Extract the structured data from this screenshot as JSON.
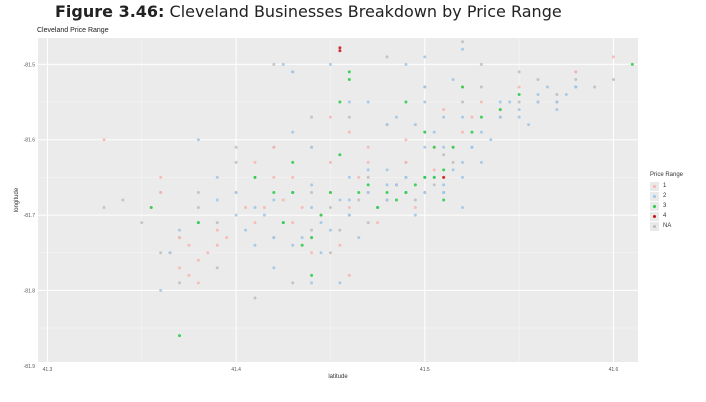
{
  "figure": {
    "number": "Figure 3.46:",
    "caption": "Cleveland Businesses Breakdown by Price Range"
  },
  "chart_data": {
    "type": "scatter",
    "title": "Cleveland Price Range",
    "xlabel": "latitude",
    "ylabel": "longitude",
    "xlim": [
      41.295,
      41.613
    ],
    "ylim": [
      -81.945,
      -81.515
    ],
    "x_ticks": [
      {
        "value": 41.3,
        "label": "41.3"
      },
      {
        "value": 41.4,
        "label": "41.4"
      },
      {
        "value": 41.5,
        "label": "41.5"
      },
      {
        "value": 41.6,
        "label": "41.6"
      }
    ],
    "y_ticks": [
      {
        "value": -81.55,
        "label": "-81.5"
      },
      {
        "value": -81.65,
        "label": "-81.6"
      },
      {
        "value": -81.75,
        "label": "-81.7"
      },
      {
        "value": -81.85,
        "label": "-81.8"
      },
      {
        "value": -81.95,
        "label": "-81.9"
      }
    ],
    "grid": true,
    "legend_position": "right",
    "legend": {
      "title": "Price Range",
      "entries": [
        {
          "label": "1",
          "color": "#f8b4b0"
        },
        {
          "label": "2",
          "color": "#9cc5e8"
        },
        {
          "label": "3",
          "color": "#22cc44"
        },
        {
          "label": "4",
          "color": "#cc1111"
        },
        {
          "label": "NA",
          "color": "#bdbdbd"
        }
      ]
    },
    "series": [
      {
        "name": "1",
        "x": [
          41.33,
          41.355,
          41.36,
          41.365,
          41.37,
          41.375,
          41.38,
          41.385,
          41.39,
          41.395,
          41.4,
          41.405,
          41.41,
          41.415,
          41.42,
          41.425,
          41.43,
          41.435,
          41.44,
          41.445,
          41.45,
          41.455,
          41.46,
          41.465,
          41.47,
          41.475,
          41.48,
          41.485,
          41.49,
          41.495,
          41.5,
          41.505,
          41.51,
          41.515,
          41.52,
          41.525,
          41.53,
          41.54,
          41.55,
          41.56,
          41.58,
          41.6,
          41.39,
          41.38,
          41.375,
          41.44,
          41.45,
          41.46,
          41.47,
          41.48,
          41.49,
          41.43,
          41.42,
          41.41,
          41.5,
          41.52,
          41.51,
          41.505,
          41.46,
          41.44,
          41.37,
          41.36,
          41.45,
          41.47,
          41.49
        ],
        "y": [
          -81.65,
          -81.74,
          -81.72,
          -81.8,
          -81.82,
          -81.79,
          -81.81,
          -81.8,
          -81.77,
          -81.78,
          -81.72,
          -81.74,
          -81.76,
          -81.74,
          -81.7,
          -81.73,
          -81.76,
          -81.74,
          -81.78,
          -81.75,
          -81.72,
          -81.79,
          -81.74,
          -81.7,
          -81.72,
          -81.76,
          -81.73,
          -81.71,
          -81.68,
          -81.74,
          -81.72,
          -81.69,
          -81.7,
          -81.66,
          -81.64,
          -81.62,
          -81.6,
          -81.61,
          -81.58,
          -81.6,
          -81.56,
          -81.54,
          -81.79,
          -81.84,
          -81.83,
          -81.66,
          -81.68,
          -81.64,
          -81.66,
          -81.63,
          -81.65,
          -81.7,
          -81.66,
          -81.68,
          -81.64,
          -81.58,
          -81.61,
          -81.66,
          -81.83,
          -81.8,
          -81.78,
          -81.7,
          -81.62,
          -81.68,
          -81.72
        ]
      },
      {
        "name": "2",
        "x": [
          41.36,
          41.37,
          41.38,
          41.39,
          41.4,
          41.405,
          41.41,
          41.415,
          41.42,
          41.425,
          41.43,
          41.435,
          41.44,
          41.445,
          41.45,
          41.455,
          41.46,
          41.465,
          41.47,
          41.475,
          41.48,
          41.485,
          41.49,
          41.495,
          41.5,
          41.505,
          41.51,
          41.515,
          41.52,
          41.525,
          41.53,
          41.535,
          41.54,
          41.545,
          41.55,
          41.555,
          41.56,
          41.565,
          41.57,
          41.575,
          41.58,
          41.425,
          41.43,
          41.44,
          41.45,
          41.46,
          41.48,
          41.49,
          41.5,
          41.505,
          41.51,
          41.52,
          41.515,
          41.52,
          41.5,
          41.495,
          41.47,
          41.42,
          41.41,
          41.39,
          41.38,
          41.365,
          41.43,
          41.44,
          41.455,
          41.47,
          41.485,
          41.5,
          41.51,
          41.52,
          41.525,
          41.54,
          41.55,
          41.56,
          41.57,
          41.58,
          41.49,
          41.48,
          41.46,
          41.445,
          41.43,
          41.42,
          41.4,
          41.44,
          41.46,
          41.48,
          41.5,
          41.51,
          41.52,
          41.53,
          41.5,
          41.51
        ],
        "y": [
          -81.85,
          -81.77,
          -81.76,
          -81.73,
          -81.72,
          -81.77,
          -81.74,
          -81.75,
          -81.73,
          -81.76,
          -81.72,
          -81.78,
          -81.74,
          -81.8,
          -81.77,
          -81.73,
          -81.75,
          -81.78,
          -81.72,
          -81.74,
          -81.73,
          -81.71,
          -81.72,
          -81.75,
          -81.72,
          -81.7,
          -81.71,
          -81.69,
          -81.68,
          -81.66,
          -81.64,
          -81.65,
          -81.62,
          -81.6,
          -81.61,
          -81.63,
          -81.6,
          -81.58,
          -81.6,
          -81.59,
          -81.58,
          -81.55,
          -81.56,
          -81.66,
          -81.55,
          -81.6,
          -81.63,
          -81.55,
          -81.58,
          -81.64,
          -81.66,
          -81.62,
          -81.57,
          -81.53,
          -81.54,
          -81.63,
          -81.69,
          -81.82,
          -81.79,
          -81.7,
          -81.65,
          -81.8,
          -81.64,
          -81.84,
          -81.84,
          -81.6,
          -81.62,
          -81.66,
          -81.72,
          -81.74,
          -81.66,
          -81.6,
          -81.62,
          -81.59,
          -81.61,
          -81.58,
          -81.7,
          -81.71,
          -81.7,
          -81.76,
          -81.79,
          -81.78,
          -81.75,
          -81.71,
          -81.73,
          -81.69,
          -81.7,
          -81.72,
          -81.7,
          -81.68,
          -81.6,
          -81.62
        ]
      },
      {
        "name": "3",
        "x": [
          41.37,
          41.355,
          41.38,
          41.41,
          41.42,
          41.425,
          41.43,
          41.435,
          41.44,
          41.445,
          41.45,
          41.455,
          41.46,
          41.465,
          41.47,
          41.475,
          41.48,
          41.485,
          41.49,
          41.495,
          41.5,
          41.505,
          41.51,
          41.515,
          41.52,
          41.525,
          41.53,
          41.54,
          41.55,
          41.61,
          41.46,
          41.455,
          41.49,
          41.5,
          41.44,
          41.43,
          41.51,
          41.505
        ],
        "y": [
          -81.91,
          -81.74,
          -81.76,
          -81.7,
          -81.72,
          -81.76,
          -81.72,
          -81.79,
          -81.83,
          -81.75,
          -81.72,
          -81.67,
          -81.56,
          -81.72,
          -81.71,
          -81.74,
          -81.72,
          -81.73,
          -81.72,
          -81.71,
          -81.7,
          -81.66,
          -81.69,
          -81.66,
          -81.58,
          -81.64,
          -81.62,
          -81.61,
          -81.59,
          -81.55,
          -81.57,
          -81.6,
          -81.6,
          -81.64,
          -81.78,
          -81.68,
          -81.73,
          -81.7
        ]
      },
      {
        "name": "4",
        "x": [
          41.455,
          41.455,
          41.51
        ],
        "y": [
          -81.528,
          -81.532,
          -81.7
        ]
      },
      {
        "name": "NA",
        "x": [
          41.33,
          41.34,
          41.35,
          41.36,
          41.37,
          41.38,
          41.39,
          41.4,
          41.41,
          41.42,
          41.43,
          41.44,
          41.45,
          41.46,
          41.47,
          41.48,
          41.49,
          41.5,
          41.51,
          41.52,
          41.53,
          41.54,
          41.55,
          41.56,
          41.57,
          41.58,
          41.59,
          41.6,
          41.42,
          41.43,
          41.44,
          41.46,
          41.48,
          41.5,
          41.52,
          41.53,
          41.55,
          41.57,
          41.58,
          41.37,
          41.39,
          41.41,
          41.43,
          41.45,
          41.47,
          41.49,
          41.51,
          41.38,
          41.36,
          41.4,
          41.42,
          41.44,
          41.455,
          41.465,
          41.475,
          41.485,
          41.495,
          41.505,
          41.515
        ],
        "y": [
          -81.74,
          -81.73,
          -81.76,
          -81.72,
          -81.78,
          -81.74,
          -81.76,
          -81.68,
          -81.7,
          -81.78,
          -81.72,
          -81.77,
          -81.74,
          -81.75,
          -81.7,
          -81.73,
          -81.68,
          -81.7,
          -81.67,
          -81.6,
          -81.58,
          -81.62,
          -81.6,
          -81.57,
          -81.59,
          -81.56,
          -81.58,
          -81.57,
          -81.55,
          -81.56,
          -81.62,
          -81.62,
          -81.54,
          -81.58,
          -81.52,
          -81.55,
          -81.56,
          -81.6,
          -81.57,
          -81.84,
          -81.82,
          -81.86,
          -81.84,
          -81.8,
          -81.76,
          -81.7,
          -81.72,
          -81.72,
          -81.8,
          -81.66,
          -81.66,
          -81.72,
          -81.77,
          -81.73,
          -81.74,
          -81.71,
          -81.73,
          -81.71,
          -81.68
        ]
      }
    ]
  }
}
